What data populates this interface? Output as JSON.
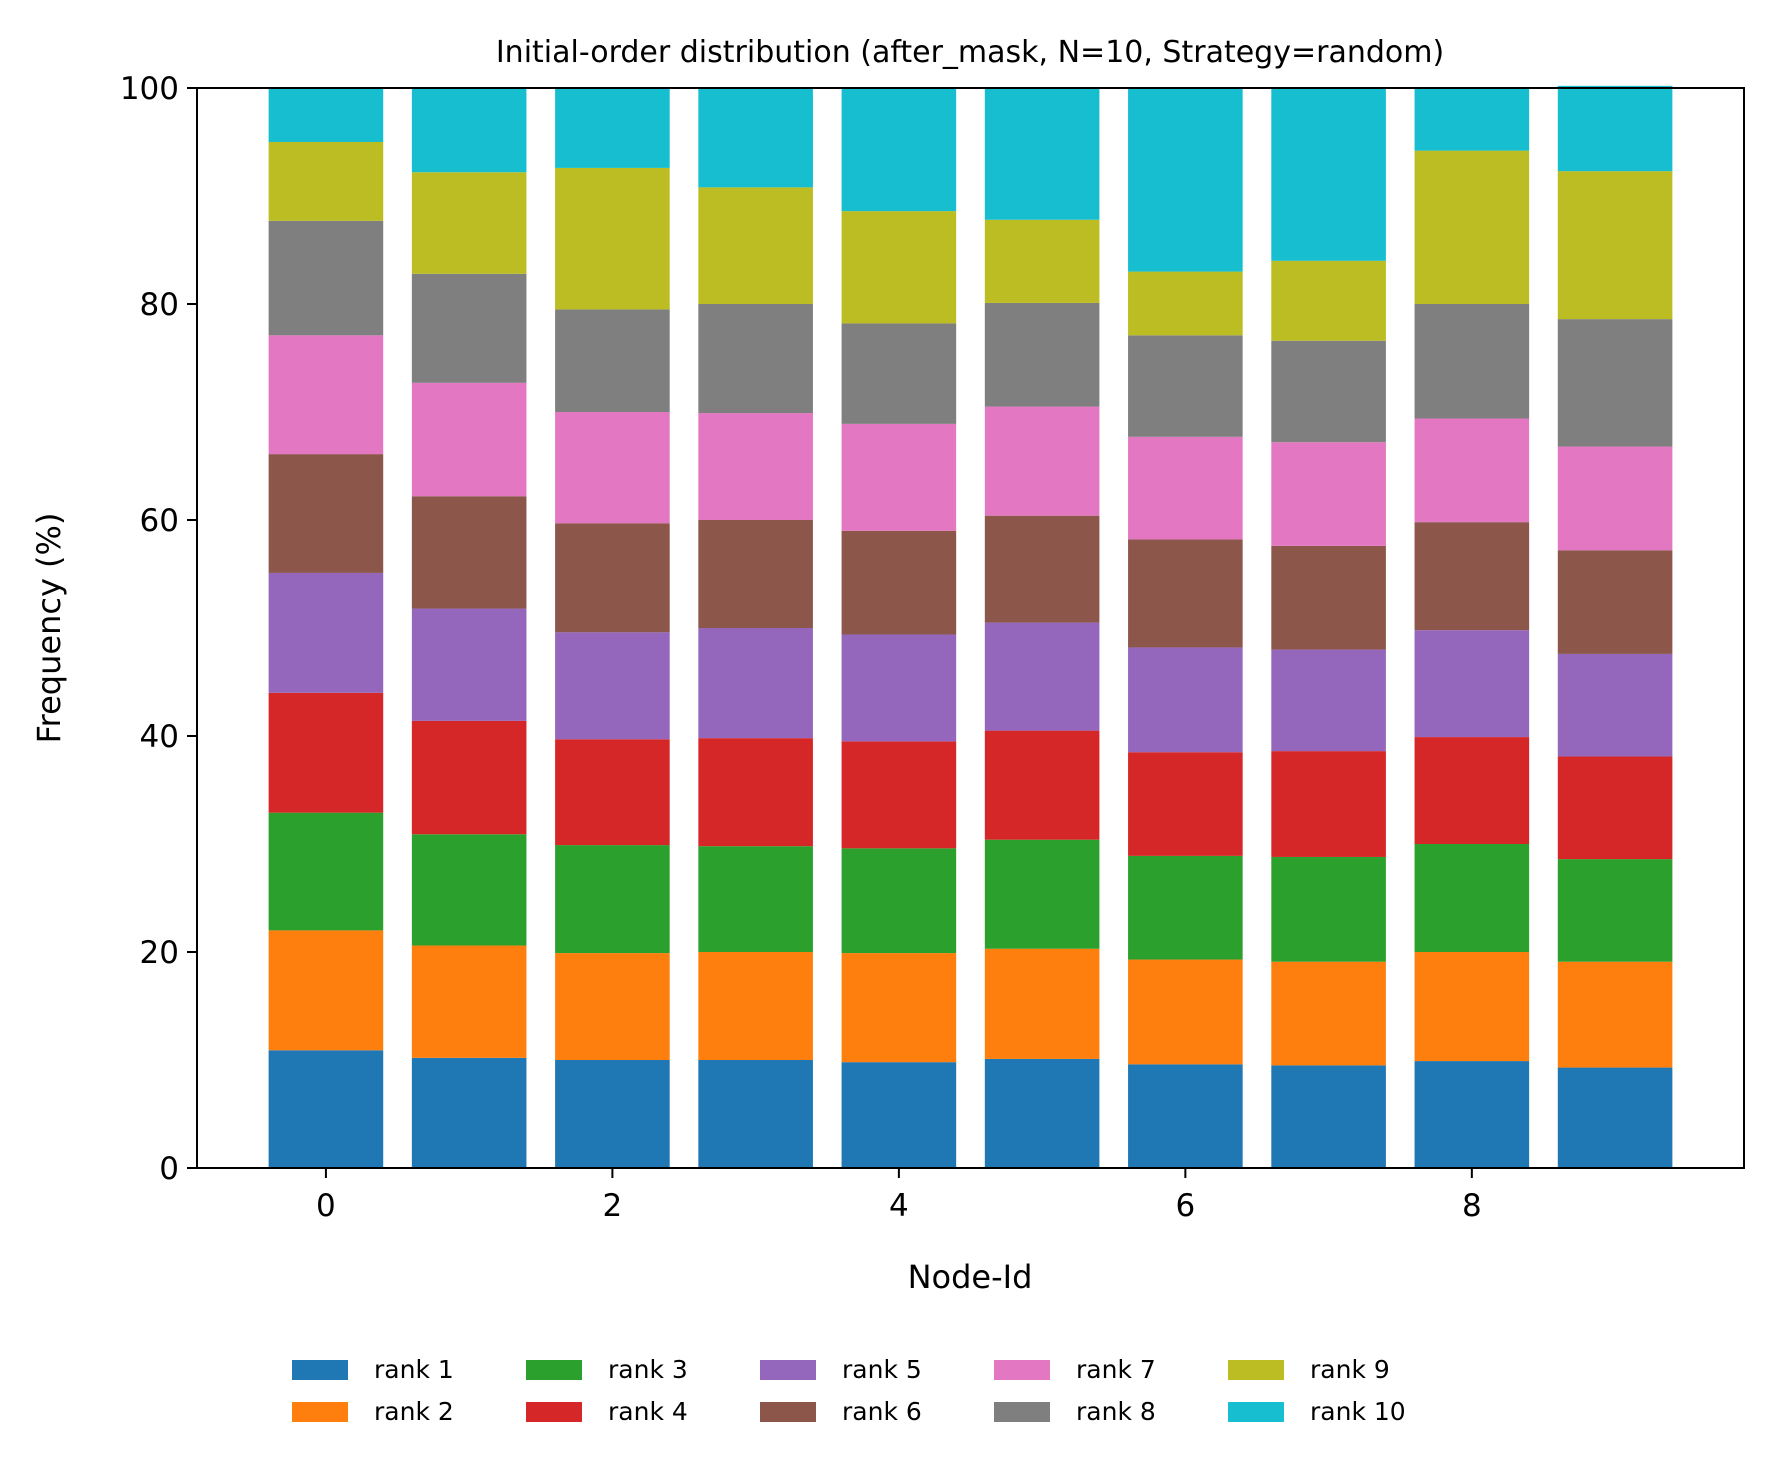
{
  "chart_data": {
    "type": "bar",
    "stacked": true,
    "title": "Initial-order distribution (after_mask, N=10, Strategy=random)",
    "xlabel": "Node-Id",
    "ylabel": "Frequency (%)",
    "ylim": [
      0,
      100
    ],
    "xlim": [
      -0.9,
      9.9
    ],
    "x_ticks": [
      0,
      2,
      4,
      6,
      8
    ],
    "x_tick_labels": [
      "0",
      "2",
      "4",
      "6",
      "8"
    ],
    "y_ticks": [
      0,
      20,
      40,
      60,
      80,
      100
    ],
    "y_tick_labels": [
      "0",
      "20",
      "40",
      "60",
      "80",
      "100"
    ],
    "grid": false,
    "legend_position": "bottom-center",
    "x": [
      0,
      1,
      2,
      3,
      4,
      5,
      6,
      7,
      8,
      9
    ],
    "series": [
      {
        "name": "rank 1",
        "color": "#1f77b4",
        "values": [
          10.9,
          10.2,
          10.0,
          10.0,
          9.8,
          10.1,
          9.6,
          9.5,
          9.9,
          9.3
        ]
      },
      {
        "name": "rank 2",
        "color": "#ff7f0e",
        "values": [
          11.1,
          10.4,
          9.9,
          10.0,
          10.1,
          10.2,
          9.7,
          9.6,
          10.1,
          9.8
        ]
      },
      {
        "name": "rank 3",
        "color": "#2ca02c",
        "values": [
          10.9,
          10.3,
          10.0,
          9.8,
          9.7,
          10.1,
          9.6,
          9.7,
          10.0,
          9.5
        ]
      },
      {
        "name": "rank 4",
        "color": "#d62728",
        "values": [
          11.1,
          10.5,
          9.8,
          10.0,
          9.9,
          10.1,
          9.6,
          9.8,
          9.9,
          9.5
        ]
      },
      {
        "name": "rank 5",
        "color": "#9467bd",
        "values": [
          11.1,
          10.4,
          9.9,
          10.2,
          9.9,
          10.0,
          9.7,
          9.4,
          9.9,
          9.5
        ]
      },
      {
        "name": "rank 6",
        "color": "#8c564b",
        "values": [
          11.0,
          10.4,
          10.1,
          10.0,
          9.6,
          9.9,
          10.0,
          9.6,
          10.0,
          9.6
        ]
      },
      {
        "name": "rank 7",
        "color": "#e377c2",
        "values": [
          11.0,
          10.5,
          10.3,
          9.9,
          9.9,
          10.1,
          9.5,
          9.6,
          9.6,
          9.6
        ]
      },
      {
        "name": "rank 8",
        "color": "#7f7f7f",
        "values": [
          10.6,
          10.1,
          9.5,
          10.1,
          9.3,
          9.6,
          9.4,
          9.4,
          10.6,
          11.8
        ]
      },
      {
        "name": "rank 9",
        "color": "#bcbd22",
        "values": [
          7.3,
          9.4,
          13.1,
          10.8,
          10.4,
          7.7,
          5.9,
          7.4,
          14.2,
          13.7
        ]
      },
      {
        "name": "rank 10",
        "color": "#17becf",
        "values": [
          5.0,
          7.8,
          7.4,
          9.2,
          11.4,
          12.2,
          17.0,
          16.0,
          5.8,
          7.9
        ]
      }
    ]
  }
}
